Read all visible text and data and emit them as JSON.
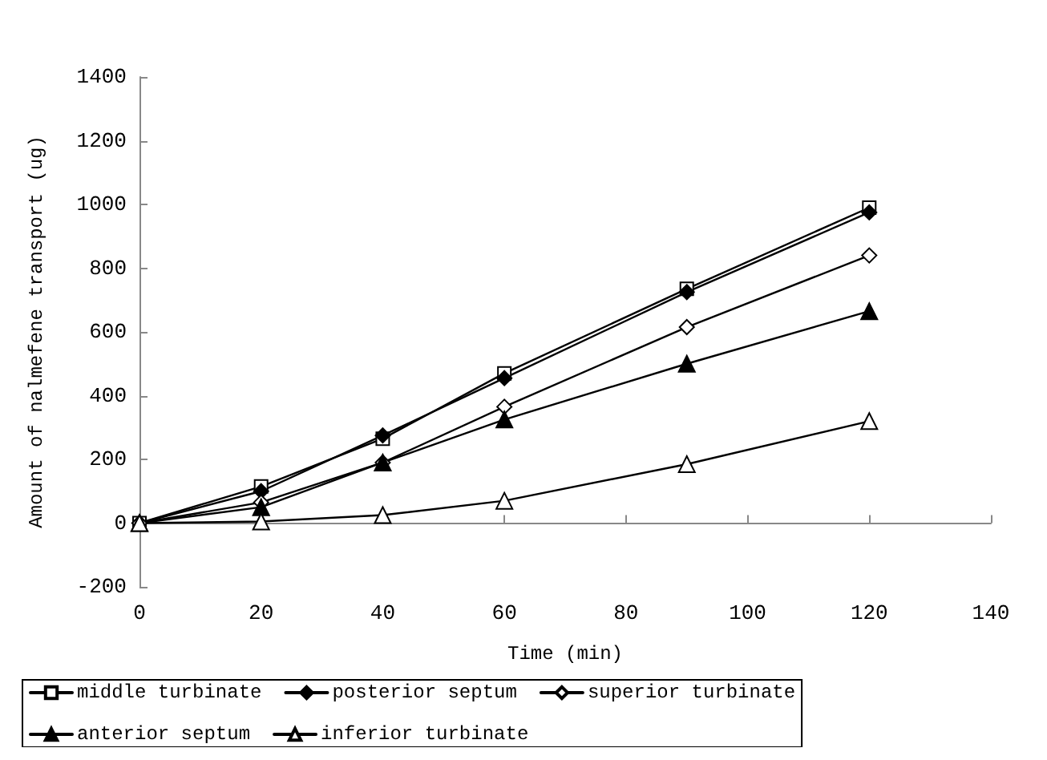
{
  "chart_data": {
    "type": "line",
    "xlabel": "Time (min)",
    "ylabel": "Amount of nalmefene transport (ug)",
    "x": [
      0,
      20,
      40,
      60,
      90,
      120
    ],
    "series": [
      {
        "name": "middle turbinate",
        "color": "#ffffff",
        "marker": "square",
        "values": [
          0,
          115,
          265,
          470,
          735,
          990
        ]
      },
      {
        "name": "posterior septum",
        "color": "#000000",
        "marker": "diamond",
        "values": [
          0,
          100,
          275,
          455,
          725,
          975
        ]
      },
      {
        "name": "superior turbinate",
        "color": "#ffffff",
        "marker": "diamond",
        "values": [
          0,
          65,
          190,
          365,
          615,
          840
        ]
      },
      {
        "name": "anterior septum",
        "color": "#000000",
        "marker": "triangle",
        "values": [
          0,
          50,
          190,
          325,
          500,
          665
        ]
      },
      {
        "name": "inferior turbinate",
        "color": "#ffffff",
        "marker": "triangle",
        "values": [
          0,
          5,
          25,
          70,
          185,
          320
        ]
      }
    ],
    "xlim": [
      0,
      140
    ],
    "xticks": [
      0,
      20,
      40,
      60,
      80,
      100,
      120,
      140
    ],
    "ylim": [
      -200,
      1400
    ],
    "yticks": [
      -200,
      0,
      200,
      400,
      600,
      800,
      1000,
      1200,
      1400
    ],
    "legend": "bottom",
    "line_style": "solid"
  }
}
